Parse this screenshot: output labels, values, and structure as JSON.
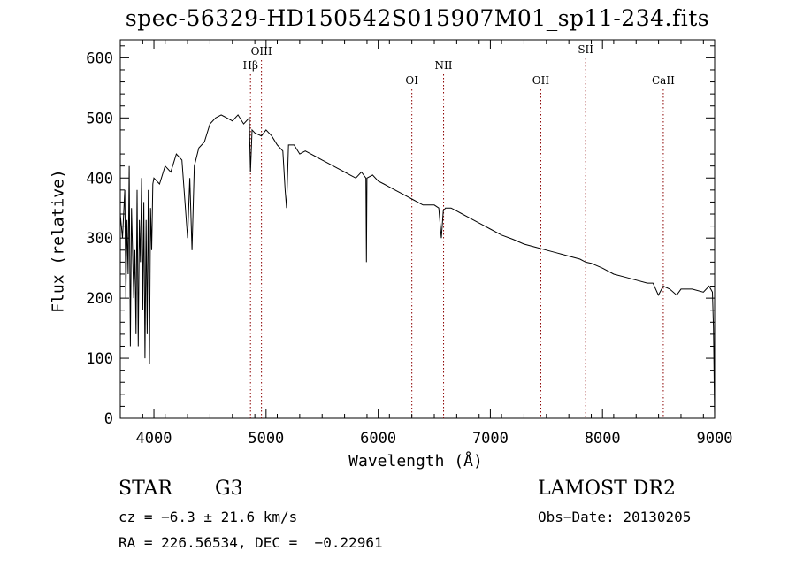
{
  "title": "spec-56329-HD150542S015907M01_sp11-234.fits",
  "footer": {
    "object_class": "STAR",
    "subclass": "G3",
    "cz": "cz = −6.3 ± 21.6 km/s",
    "radec": "RA = 226.56534, DEC =  −0.22961",
    "survey": "LAMOST DR2",
    "obs_date": "Obs−Date: 20130205"
  },
  "colors": {
    "line": "#000000",
    "marker": "#8b0000"
  },
  "chart_data": {
    "type": "line",
    "title": "spec-56329-HD150542S015907M01_sp11-234.fits",
    "xlabel": "Wavelength (Å)",
    "ylabel": "Flux (relative)",
    "xlim": [
      3700,
      9000
    ],
    "ylim": [
      0,
      630
    ],
    "xticks": [
      4000,
      5000,
      6000,
      7000,
      8000,
      9000
    ],
    "yticks": [
      0,
      100,
      200,
      300,
      400,
      500,
      600
    ],
    "grid": false,
    "lines": [
      {
        "name": "Hβ",
        "wavelength": 4861
      },
      {
        "name": "OIII",
        "wavelength": 4959
      },
      {
        "name": "OI",
        "wavelength": 6300
      },
      {
        "name": "NII",
        "wavelength": 6583
      },
      {
        "name": "OII",
        "wavelength": 7450
      },
      {
        "name": "SII",
        "wavelength": 7850
      },
      {
        "name": "CaII",
        "wavelength": 8542
      }
    ],
    "series": [
      {
        "x": [
          3700,
          3720,
          3740,
          3750,
          3760,
          3770,
          3780,
          3790,
          3800,
          3820,
          3830,
          3840,
          3850,
          3860,
          3870,
          3880,
          3890,
          3900,
          3910,
          3920,
          3930,
          3940,
          3950,
          3960,
          3970,
          3980,
          3990,
          4000,
          4050,
          4100,
          4150,
          4200,
          4250,
          4300,
          4320,
          4340,
          4360,
          4400,
          4450,
          4500,
          4550,
          4600,
          4650,
          4700,
          4750,
          4800,
          4850,
          4861,
          4875,
          4900,
          4959,
          5000,
          5050,
          5100,
          5150,
          5170,
          5183,
          5200,
          5250,
          5300,
          5350,
          5400,
          5450,
          5500,
          5550,
          5600,
          5650,
          5700,
          5750,
          5800,
          5850,
          5890,
          5895,
          5900,
          5950,
          6000,
          6050,
          6100,
          6150,
          6200,
          6250,
          6300,
          6350,
          6400,
          6450,
          6500,
          6540,
          6563,
          6580,
          6600,
          6650,
          6700,
          6750,
          6800,
          6850,
          6900,
          6950,
          7000,
          7100,
          7200,
          7300,
          7400,
          7500,
          7600,
          7700,
          7800,
          7850,
          7900,
          8000,
          8100,
          8200,
          8300,
          8400,
          8450,
          8498,
          8542,
          8600,
          8662,
          8700,
          8800,
          8900,
          8950,
          8980,
          8990,
          9000
        ],
        "y": [
          340,
          300,
          380,
          200,
          330,
          240,
          420,
          120,
          350,
          200,
          280,
          140,
          380,
          120,
          330,
          260,
          400,
          180,
          360,
          100,
          330,
          140,
          380,
          90,
          350,
          280,
          390,
          400,
          390,
          420,
          410,
          440,
          430,
          300,
          400,
          280,
          420,
          450,
          460,
          490,
          500,
          505,
          500,
          495,
          505,
          490,
          500,
          410,
          480,
          475,
          470,
          480,
          470,
          455,
          445,
          380,
          350,
          455,
          455,
          440,
          445,
          440,
          435,
          430,
          425,
          420,
          415,
          410,
          405,
          400,
          410,
          400,
          260,
          400,
          405,
          395,
          390,
          385,
          380,
          375,
          370,
          365,
          360,
          355,
          355,
          355,
          350,
          300,
          345,
          350,
          350,
          345,
          340,
          335,
          330,
          325,
          320,
          315,
          305,
          298,
          290,
          285,
          280,
          275,
          270,
          265,
          260,
          258,
          250,
          240,
          235,
          230,
          225,
          225,
          205,
          220,
          215,
          205,
          215,
          215,
          210,
          220,
          210,
          150,
          0
        ]
      }
    ]
  }
}
